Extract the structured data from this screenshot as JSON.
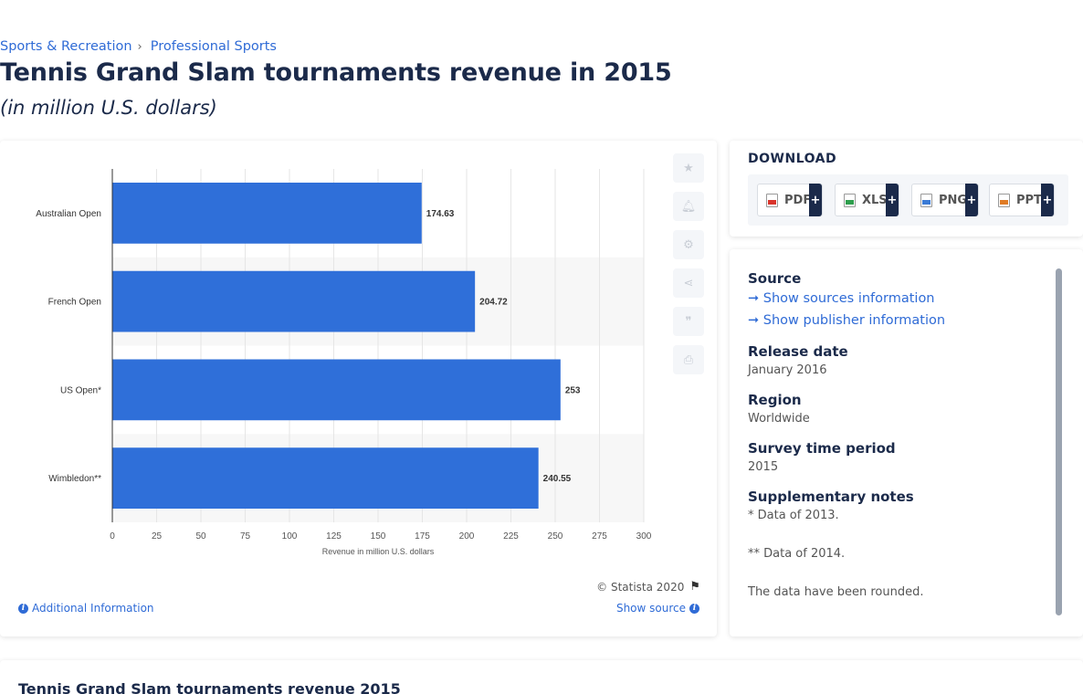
{
  "breadcrumb": [
    "Sports & Recreation",
    "Professional Sports"
  ],
  "title": "Tennis Grand Slam tournaments revenue in 2015",
  "subtitle": "(in million U.S. dollars)",
  "chart_data": {
    "type": "bar",
    "orientation": "horizontal",
    "categories": [
      "Australian Open",
      "French Open",
      "US Open*",
      "Wimbledon**"
    ],
    "values": [
      174.63,
      204.72,
      253,
      240.55
    ],
    "value_labels": [
      "174.63",
      "204.72",
      "253",
      "240.55"
    ],
    "xlabel": "Revenue in million U.S. dollars",
    "ylabel": "",
    "xlim": [
      0,
      300
    ],
    "ticks": [
      0,
      25,
      50,
      75,
      100,
      125,
      150,
      175,
      200,
      225,
      250,
      275,
      300
    ],
    "bar_color": "#2f6fd9",
    "grid": true
  },
  "chart_footer": {
    "copyright": "© Statista 2020",
    "additional_info": "Additional Information",
    "show_source": "Show source"
  },
  "tools": [
    "star-icon",
    "bell-icon",
    "gear-icon",
    "share-icon",
    "quote-icon",
    "print-icon"
  ],
  "download": {
    "title": "DOWNLOAD",
    "buttons": [
      {
        "label": "PDF",
        "plus": "+"
      },
      {
        "label": "XLS",
        "plus": "+"
      },
      {
        "label": "PNG",
        "plus": "+"
      },
      {
        "label": "PPT",
        "plus": "+"
      }
    ]
  },
  "info": {
    "source_head": "Source",
    "show_sources": "Show sources information",
    "show_publisher": "Show publisher information",
    "release_head": "Release date",
    "release_val": "January 2016",
    "region_head": "Region",
    "region_val": "Worldwide",
    "survey_head": "Survey time period",
    "survey_val": "2015",
    "notes_head": "Supplementary notes",
    "note1": "* Data of 2013.",
    "note2": "** Data of 2014.",
    "note3": "The data have been rounded."
  },
  "bottom": {
    "title": "Tennis Grand Slam tournaments revenue 2015"
  }
}
